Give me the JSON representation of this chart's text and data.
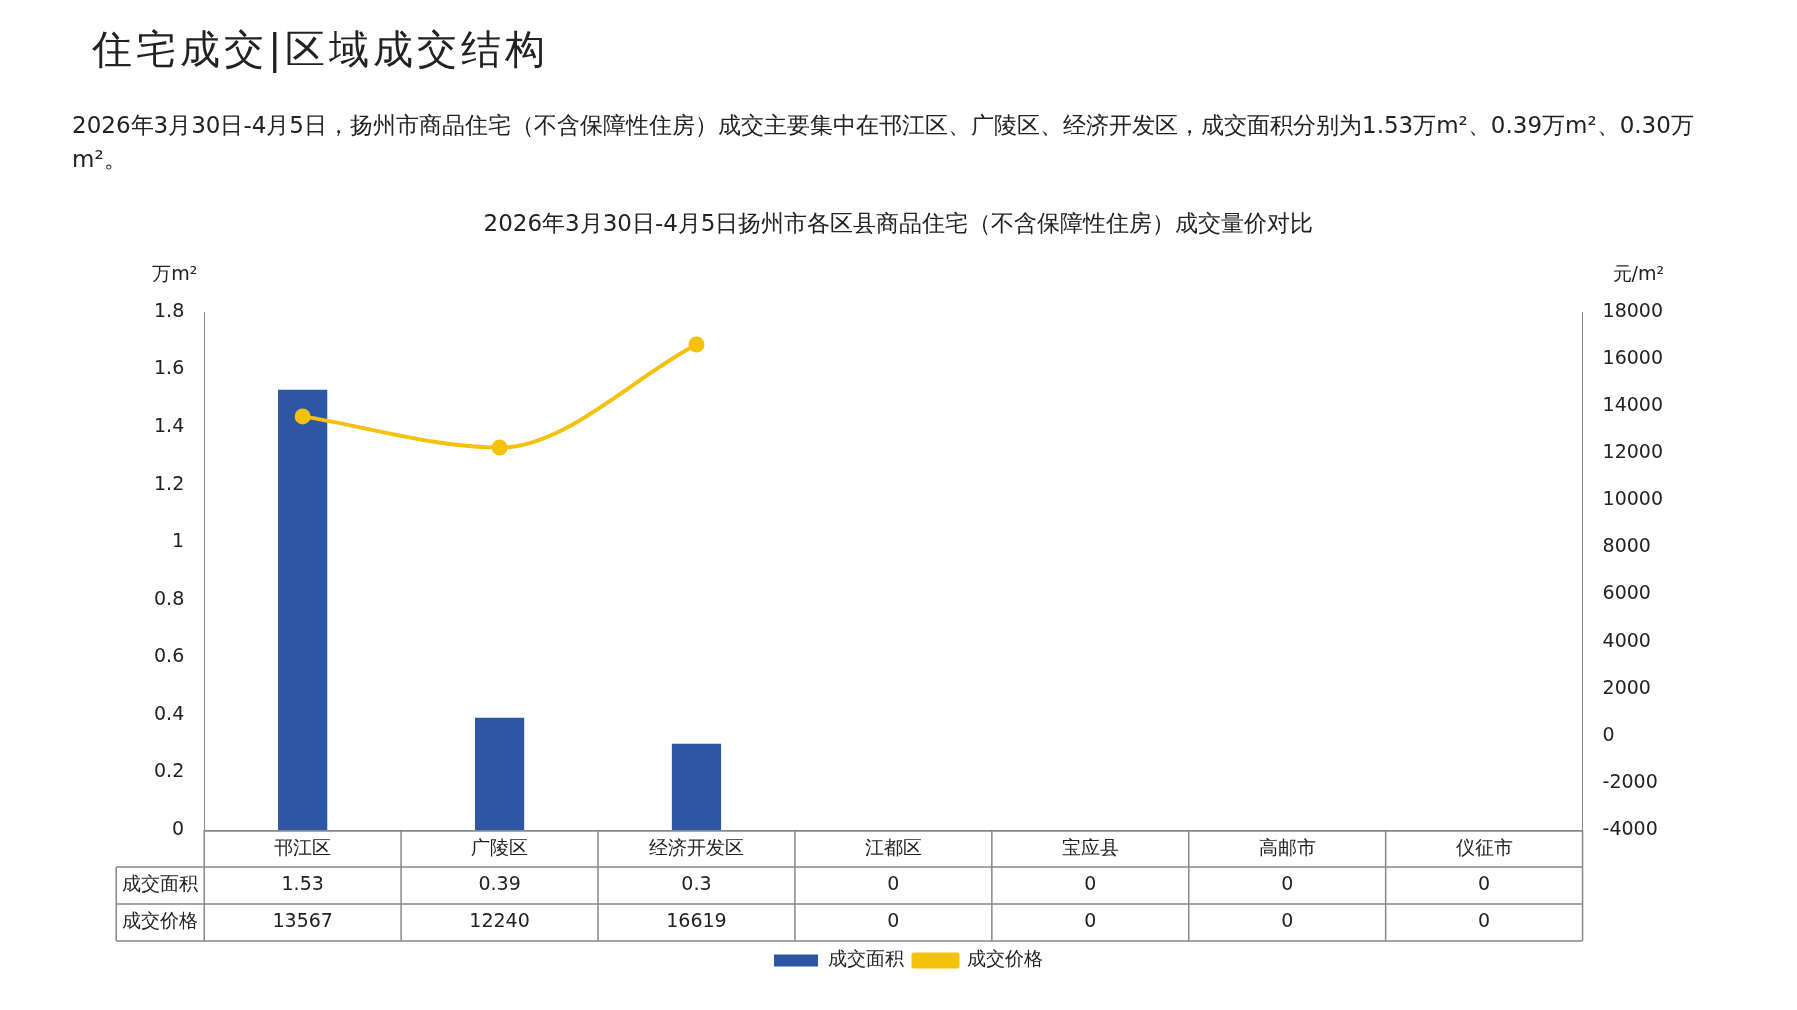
{
  "chart_data": {
    "type": "bar",
    "title": "2026年3月30日-4月5日扬州市各区县商品住宅（不含保障性住房）成交量价对比",
    "subtitle": "2026年3月30日-4月5日，扬州市商品住宅（不含保障性住房）成交主要集中在邗江区、广陵区、经济开发区，成交面积分别为1.53万m²、0.39万m²、0.30万m²。",
    "annotations": [
      "住宅成交|区域成交结构"
    ],
    "categories": [
      "邗江区",
      "广陵区",
      "经济开发区",
      "江都区",
      "宝应县",
      "高邮市",
      "仪征市"
    ],
    "series": [
      {
        "name": "成交面积",
        "color": "#2e56a5",
        "values": [
          1.53,
          0.39,
          0.3,
          0,
          0,
          0,
          0
        ]
      },
      {
        "name": "成交价格",
        "type": "line",
        "axis": "y2",
        "color": "#f4c20d",
        "values": [
          13567,
          12240,
          16619,
          null,
          null,
          null,
          null
        ],
        "value_labels": [
          "13567",
          "12240",
          "16619",
          "0",
          "0",
          "0",
          "0"
        ]
      }
    ],
    "ylabel": "万m²",
    "y2label": "元/m²",
    "ylim": [
      0,
      1.8
    ],
    "yticks": [
      0,
      0.2,
      0.4,
      0.6,
      0.8,
      1,
      1.2,
      1.4,
      1.6,
      1.8
    ],
    "y2lim": [
      -4000,
      18000
    ],
    "y2ticks": [
      -4000,
      -2000,
      0,
      2000,
      4000,
      6000,
      8000,
      10000,
      12000,
      14000,
      16000,
      18000
    ],
    "data_labels": true,
    "legend": "bottom",
    "marker": "circle",
    "line_style": "solid",
    "grid": false
  }
}
